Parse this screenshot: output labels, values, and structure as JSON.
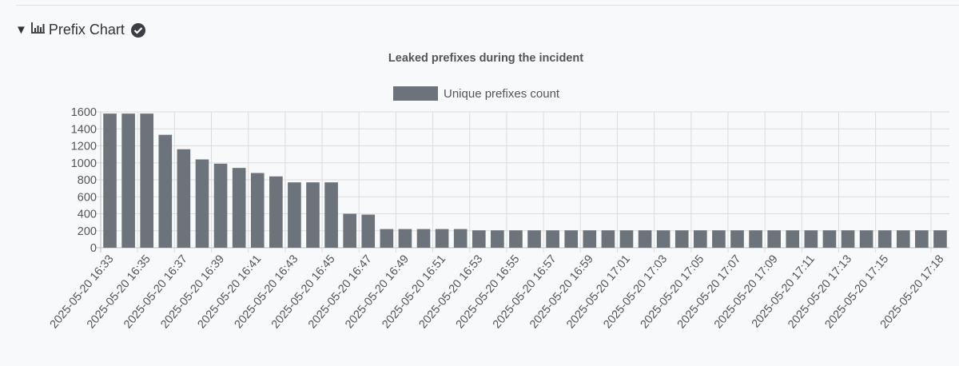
{
  "section": {
    "title": "Prefix Chart",
    "expanded": true,
    "toggle_icon": "triangle-down-icon",
    "chart_icon": "bar-chart-icon",
    "status_icon": "check-circle-icon"
  },
  "chart_data": {
    "type": "bar",
    "title": "Leaked prefixes during the incident",
    "xlabel": "",
    "ylabel": "",
    "ylim": [
      0,
      1600
    ],
    "yticks": [
      0,
      200,
      400,
      600,
      800,
      1000,
      1200,
      1400,
      1600
    ],
    "grid": true,
    "legend_position": "top",
    "bar_color": "#6c737b",
    "categories": [
      "2025-05-20 16:33",
      "2025-05-20 16:34",
      "2025-05-20 16:35",
      "2025-05-20 16:36",
      "2025-05-20 16:37",
      "2025-05-20 16:38",
      "2025-05-20 16:39",
      "2025-05-20 16:40",
      "2025-05-20 16:41",
      "2025-05-20 16:42",
      "2025-05-20 16:43",
      "2025-05-20 16:44",
      "2025-05-20 16:45",
      "2025-05-20 16:46",
      "2025-05-20 16:47",
      "2025-05-20 16:48",
      "2025-05-20 16:49",
      "2025-05-20 16:50",
      "2025-05-20 16:51",
      "2025-05-20 16:52",
      "2025-05-20 16:53",
      "2025-05-20 16:54",
      "2025-05-20 16:55",
      "2025-05-20 16:56",
      "2025-05-20 16:57",
      "2025-05-20 16:58",
      "2025-05-20 16:59",
      "2025-05-20 17:00",
      "2025-05-20 17:01",
      "2025-05-20 17:02",
      "2025-05-20 17:03",
      "2025-05-20 17:04",
      "2025-05-20 17:05",
      "2025-05-20 17:06",
      "2025-05-20 17:07",
      "2025-05-20 17:08",
      "2025-05-20 17:09",
      "2025-05-20 17:10",
      "2025-05-20 17:11",
      "2025-05-20 17:12",
      "2025-05-20 17:13",
      "2025-05-20 17:14",
      "2025-05-20 17:15",
      "2025-05-20 17:16",
      "2025-05-20 17:17",
      "2025-05-20 17:18"
    ],
    "visible_tick_labels": [
      "2025-05-20 16:33",
      "2025-05-20 16:35",
      "2025-05-20 16:37",
      "2025-05-20 16:39",
      "2025-05-20 16:41",
      "2025-05-20 16:43",
      "2025-05-20 16:45",
      "2025-05-20 16:47",
      "2025-05-20 16:49",
      "2025-05-20 16:51",
      "2025-05-20 16:53",
      "2025-05-20 16:55",
      "2025-05-20 16:57",
      "2025-05-20 16:59",
      "2025-05-20 17:01",
      "2025-05-20 17:03",
      "2025-05-20 17:05",
      "2025-05-20 17:07",
      "2025-05-20 17:09",
      "2025-05-20 17:11",
      "2025-05-20 17:13",
      "2025-05-20 17:15",
      "2025-05-20 17:18"
    ],
    "series": [
      {
        "name": "Unique prefixes count",
        "color": "#6c737b",
        "values": [
          1580,
          1580,
          1580,
          1330,
          1160,
          1040,
          990,
          940,
          880,
          840,
          770,
          770,
          770,
          400,
          390,
          220,
          220,
          220,
          220,
          220,
          205,
          205,
          205,
          205,
          205,
          205,
          205,
          205,
          205,
          205,
          205,
          205,
          205,
          205,
          205,
          205,
          205,
          205,
          205,
          205,
          205,
          205,
          205,
          205,
          205,
          205
        ]
      }
    ]
  }
}
